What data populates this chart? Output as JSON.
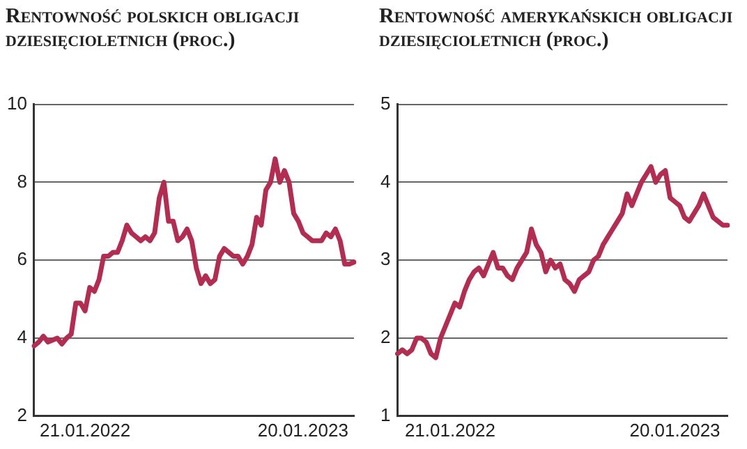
{
  "chart_data": [
    {
      "type": "line",
      "title": "Rentowność polskich obligacji dziesięcioletnich (proc.)",
      "categories": [
        null,
        null,
        null,
        null,
        null,
        null,
        null,
        null,
        null,
        null,
        null,
        "21.01.2022",
        null,
        null,
        null,
        null,
        null,
        null,
        null,
        null,
        null,
        null,
        null,
        null,
        null,
        null,
        null,
        null,
        null,
        null,
        null,
        null,
        null,
        null,
        null,
        null,
        null,
        null,
        null,
        null,
        null,
        null,
        null,
        null,
        null,
        null,
        null,
        null,
        null,
        null,
        null,
        null,
        null,
        null,
        null,
        null,
        null,
        null,
        "20.01.2023",
        null,
        null,
        null,
        null,
        null,
        null,
        null,
        null,
        null,
        null,
        null
      ],
      "series": [
        {
          "color": "#b22d52",
          "values": [
            3.8,
            3.9,
            4.05,
            3.9,
            3.95,
            4.0,
            3.85,
            4.0,
            4.1,
            4.9,
            4.9,
            4.7,
            5.3,
            5.2,
            5.5,
            6.1,
            6.1,
            6.2,
            6.2,
            6.5,
            6.9,
            6.7,
            6.6,
            6.5,
            6.6,
            6.5,
            6.7,
            7.6,
            8.0,
            7.0,
            7.0,
            6.5,
            6.6,
            6.8,
            6.5,
            5.8,
            5.4,
            5.6,
            5.4,
            5.5,
            6.1,
            6.3,
            6.2,
            6.1,
            6.1,
            5.9,
            6.1,
            6.4,
            7.1,
            6.9,
            7.8,
            8.0,
            8.6,
            8.0,
            8.3,
            8.0,
            7.2,
            7.0,
            6.7,
            6.6,
            6.5,
            6.5,
            6.5,
            6.7,
            6.6,
            6.8,
            6.5,
            5.9,
            5.9,
            5.95
          ]
        }
      ],
      "ylim": [
        2,
        10
      ],
      "yticks": [
        2,
        4,
        6,
        8,
        10
      ],
      "grid": "y",
      "marker": "none",
      "line_style": "solid",
      "legend": false
    },
    {
      "type": "line",
      "title": "Rentowność amerykańskich obligacji dziesięcioletnich (proc.)",
      "categories": [
        null,
        null,
        null,
        null,
        null,
        null,
        null,
        null,
        null,
        null,
        null,
        "21.01.2022",
        null,
        null,
        null,
        null,
        null,
        null,
        null,
        null,
        null,
        null,
        null,
        null,
        null,
        null,
        null,
        null,
        null,
        null,
        null,
        null,
        null,
        null,
        null,
        null,
        null,
        null,
        null,
        null,
        null,
        null,
        null,
        null,
        null,
        null,
        null,
        null,
        null,
        null,
        null,
        null,
        null,
        null,
        null,
        null,
        null,
        null,
        "20.01.2023",
        null,
        null,
        null,
        null,
        null,
        null,
        null,
        null,
        null,
        null,
        null
      ],
      "series": [
        {
          "color": "#b22d52",
          "values": [
            1.8,
            1.85,
            1.8,
            1.85,
            2.0,
            2.0,
            1.95,
            1.8,
            1.75,
            2.0,
            2.15,
            2.3,
            2.45,
            2.4,
            2.6,
            2.75,
            2.85,
            2.9,
            2.8,
            2.95,
            3.1,
            2.9,
            2.9,
            2.8,
            2.75,
            2.9,
            3.0,
            3.1,
            3.4,
            3.2,
            3.1,
            2.85,
            3.0,
            2.9,
            2.95,
            2.75,
            2.7,
            2.6,
            2.75,
            2.8,
            2.85,
            3.0,
            3.05,
            3.2,
            3.3,
            3.4,
            3.5,
            3.6,
            3.85,
            3.7,
            3.85,
            4.0,
            4.1,
            4.2,
            4.0,
            4.1,
            4.15,
            3.8,
            3.75,
            3.7,
            3.55,
            3.5,
            3.6,
            3.7,
            3.85,
            3.7,
            3.55,
            3.5,
            3.45,
            3.45
          ]
        }
      ],
      "ylim": [
        1,
        5
      ],
      "yticks": [
        1,
        2,
        3,
        4,
        5
      ],
      "grid": "y",
      "marker": "none",
      "line_style": "solid",
      "legend": false
    }
  ]
}
